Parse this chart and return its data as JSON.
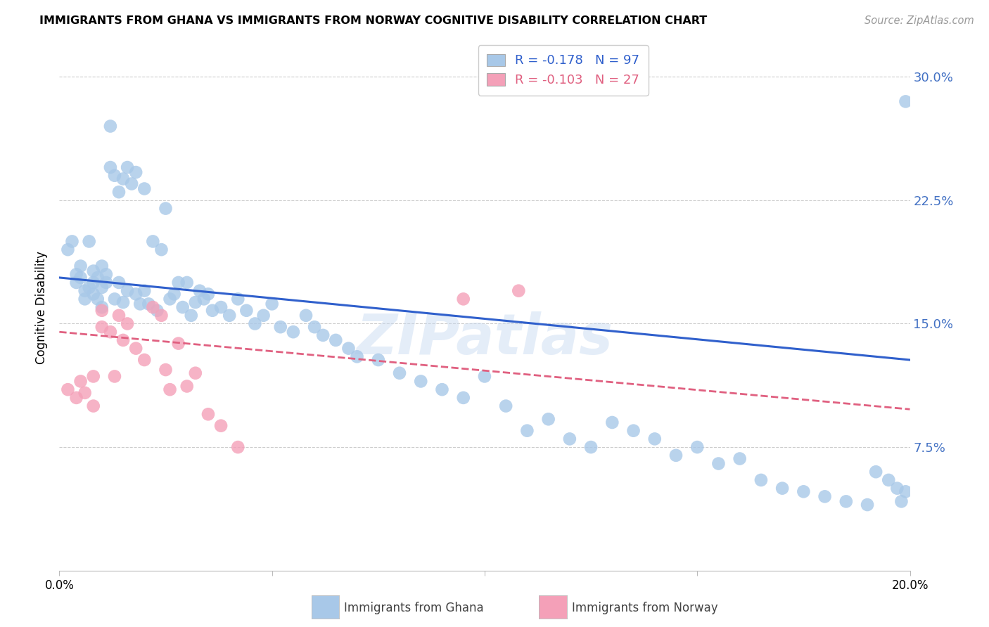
{
  "title": "IMMIGRANTS FROM GHANA VS IMMIGRANTS FROM NORWAY COGNITIVE DISABILITY CORRELATION CHART",
  "source": "Source: ZipAtlas.com",
  "ylabel": "Cognitive Disability",
  "xmin": 0.0,
  "xmax": 0.2,
  "ymin": 0.0,
  "ymax": 0.32,
  "yticks": [
    0.075,
    0.15,
    0.225,
    0.3
  ],
  "ytick_labels": [
    "7.5%",
    "15.0%",
    "22.5%",
    "30.0%"
  ],
  "ghana_R": -0.178,
  "ghana_N": 97,
  "norway_R": -0.103,
  "norway_N": 27,
  "ghana_color": "#a8c8e8",
  "norway_color": "#f4a0b8",
  "ghana_line_color": "#3060cc",
  "norway_line_color": "#e06080",
  "watermark": "ZIPatlas",
  "ghana_scatter_x": [
    0.002,
    0.003,
    0.004,
    0.004,
    0.005,
    0.005,
    0.006,
    0.006,
    0.007,
    0.007,
    0.008,
    0.008,
    0.008,
    0.009,
    0.009,
    0.01,
    0.01,
    0.01,
    0.011,
    0.011,
    0.012,
    0.012,
    0.013,
    0.013,
    0.014,
    0.014,
    0.015,
    0.015,
    0.016,
    0.016,
    0.017,
    0.018,
    0.018,
    0.019,
    0.02,
    0.02,
    0.021,
    0.022,
    0.023,
    0.024,
    0.025,
    0.026,
    0.027,
    0.028,
    0.029,
    0.03,
    0.031,
    0.032,
    0.033,
    0.034,
    0.035,
    0.036,
    0.038,
    0.04,
    0.042,
    0.044,
    0.046,
    0.048,
    0.05,
    0.052,
    0.055,
    0.058,
    0.06,
    0.062,
    0.065,
    0.068,
    0.07,
    0.075,
    0.08,
    0.085,
    0.09,
    0.095,
    0.1,
    0.105,
    0.11,
    0.115,
    0.12,
    0.125,
    0.13,
    0.135,
    0.14,
    0.145,
    0.15,
    0.155,
    0.16,
    0.165,
    0.17,
    0.175,
    0.18,
    0.185,
    0.19,
    0.192,
    0.195,
    0.197,
    0.198,
    0.199,
    0.199
  ],
  "ghana_scatter_y": [
    0.195,
    0.2,
    0.18,
    0.175,
    0.185,
    0.178,
    0.17,
    0.165,
    0.2,
    0.172,
    0.175,
    0.168,
    0.182,
    0.178,
    0.165,
    0.172,
    0.185,
    0.16,
    0.175,
    0.18,
    0.27,
    0.245,
    0.24,
    0.165,
    0.23,
    0.175,
    0.238,
    0.163,
    0.245,
    0.17,
    0.235,
    0.168,
    0.242,
    0.162,
    0.232,
    0.17,
    0.162,
    0.2,
    0.158,
    0.195,
    0.22,
    0.165,
    0.168,
    0.175,
    0.16,
    0.175,
    0.155,
    0.163,
    0.17,
    0.165,
    0.168,
    0.158,
    0.16,
    0.155,
    0.165,
    0.158,
    0.15,
    0.155,
    0.162,
    0.148,
    0.145,
    0.155,
    0.148,
    0.143,
    0.14,
    0.135,
    0.13,
    0.128,
    0.12,
    0.115,
    0.11,
    0.105,
    0.118,
    0.1,
    0.085,
    0.092,
    0.08,
    0.075,
    0.09,
    0.085,
    0.08,
    0.07,
    0.075,
    0.065,
    0.068,
    0.055,
    0.05,
    0.048,
    0.045,
    0.042,
    0.04,
    0.06,
    0.055,
    0.05,
    0.042,
    0.048,
    0.285
  ],
  "norway_scatter_x": [
    0.002,
    0.004,
    0.005,
    0.006,
    0.008,
    0.008,
    0.01,
    0.01,
    0.012,
    0.013,
    0.014,
    0.015,
    0.016,
    0.018,
    0.02,
    0.022,
    0.024,
    0.025,
    0.026,
    0.028,
    0.03,
    0.032,
    0.035,
    0.038,
    0.042,
    0.095,
    0.108
  ],
  "norway_scatter_y": [
    0.11,
    0.105,
    0.115,
    0.108,
    0.118,
    0.1,
    0.158,
    0.148,
    0.145,
    0.118,
    0.155,
    0.14,
    0.15,
    0.135,
    0.128,
    0.16,
    0.155,
    0.122,
    0.11,
    0.138,
    0.112,
    0.12,
    0.095,
    0.088,
    0.075,
    0.165,
    0.17
  ],
  "ghana_line_y_start": 0.178,
  "ghana_line_y_end": 0.128,
  "norway_line_y_start": 0.145,
  "norway_line_y_end": 0.098
}
